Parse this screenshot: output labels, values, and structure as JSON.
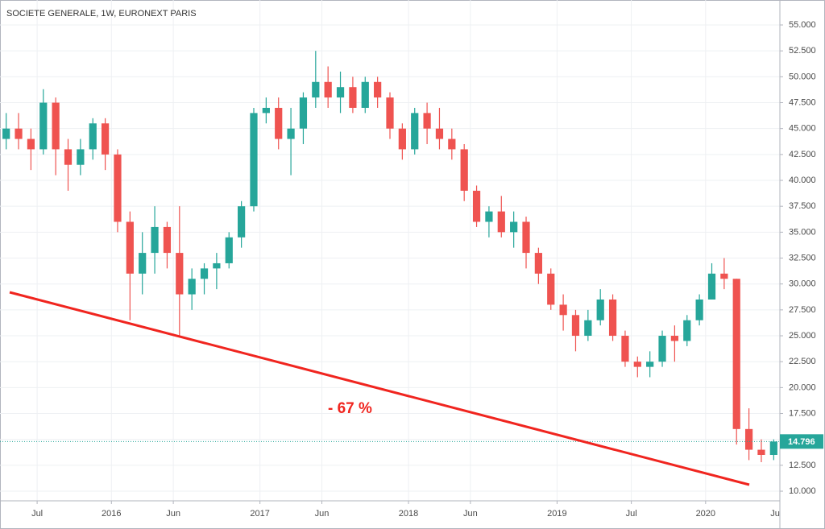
{
  "chart_data": {
    "type": "candlestick",
    "title": "SOCIETE GENERALE, 1W, EURONEXT PARIS",
    "annotation": "- 67 %",
    "up_color": "#26a69a",
    "down_color": "#ef5350",
    "x": [
      "2015-04",
      "2015-05",
      "2015-06",
      "2015-07",
      "2015-08",
      "2015-09",
      "2015-10",
      "2015-11",
      "2015-12",
      "2016-01",
      "2016-02",
      "2016-03",
      "2016-04",
      "2016-05",
      "2016-06",
      "2016-07",
      "2016-08",
      "2016-09",
      "2016-10",
      "2016-11",
      "2016-12",
      "2017-01",
      "2017-02",
      "2017-03",
      "2017-04",
      "2017-05",
      "2017-06",
      "2017-07",
      "2017-08",
      "2017-09",
      "2017-10",
      "2017-11",
      "2017-12",
      "2018-01",
      "2018-02",
      "2018-03",
      "2018-04",
      "2018-05",
      "2018-06",
      "2018-07",
      "2018-08",
      "2018-09",
      "2018-10",
      "2018-11",
      "2018-12",
      "2019-01",
      "2019-02",
      "2019-03",
      "2019-04",
      "2019-05",
      "2019-06",
      "2019-07",
      "2019-08",
      "2019-09",
      "2019-10",
      "2019-11",
      "2019-12",
      "2020-01",
      "2020-02",
      "2020-03",
      "2020-04",
      "2020-05",
      "2020-06"
    ],
    "open": [
      44,
      45,
      44,
      43,
      47.5,
      43,
      41.5,
      43,
      45.5,
      42.5,
      36,
      31,
      33,
      35.5,
      33,
      29,
      30.5,
      31.5,
      32,
      34.5,
      37.5,
      46.5,
      47,
      44,
      45,
      48,
      49.5,
      48,
      49,
      47,
      49.5,
      48,
      45,
      43,
      46.5,
      45,
      44,
      43,
      39,
      36,
      37,
      35,
      36,
      33,
      31,
      28,
      27,
      25,
      26.5,
      28.5,
      25,
      22.5,
      22,
      22.5,
      25,
      24.5,
      26.5,
      28.5,
      31,
      30.5,
      16,
      14,
      13.5
    ],
    "high": [
      46.5,
      46.5,
      45,
      48.8,
      48,
      44,
      44,
      46,
      46,
      43,
      37,
      35,
      37.5,
      36,
      37.5,
      31.5,
      32,
      33,
      35,
      38,
      47,
      48,
      48,
      47,
      48.5,
      52.5,
      51,
      50.5,
      50,
      50,
      50,
      48.5,
      45.5,
      47,
      47.5,
      47,
      45,
      43.5,
      39.5,
      37.5,
      38.5,
      37,
      36.5,
      33.5,
      31.5,
      29,
      27.5,
      27.5,
      29.5,
      29,
      25.5,
      23,
      23.5,
      25.5,
      26,
      27,
      29,
      32,
      32.5,
      30.5,
      18,
      15,
      15
    ],
    "low": [
      43,
      43,
      41,
      42.5,
      40.5,
      39,
      40.5,
      42,
      41,
      35,
      26.5,
      29,
      31,
      31.5,
      25,
      27.5,
      29,
      29.5,
      31.5,
      33.5,
      37,
      45.5,
      43,
      40.5,
      43.5,
      47,
      47,
      46.5,
      46.5,
      46.5,
      47,
      44,
      42,
      42.5,
      43.5,
      43,
      42,
      38,
      35.5,
      34.5,
      34.5,
      33.5,
      31.5,
      30,
      27.5,
      25.5,
      23.5,
      24.5,
      26,
      24.5,
      22,
      21,
      21,
      22,
      22.5,
      24,
      26,
      28.5,
      29.5,
      14.5,
      13,
      12.8,
      13
    ],
    "close": [
      45,
      44,
      43,
      47.5,
      43,
      41.5,
      43,
      45.5,
      42.5,
      36,
      31,
      33,
      35.5,
      33,
      29,
      30.5,
      31.5,
      32,
      34.5,
      37.5,
      46.5,
      47,
      44,
      45,
      48,
      49.5,
      48,
      49,
      47,
      49.5,
      48,
      45,
      43,
      46.5,
      45,
      44,
      43,
      39,
      36,
      37,
      35,
      36,
      33,
      31,
      28,
      27,
      25,
      26.5,
      28.5,
      25,
      22.5,
      22,
      22.5,
      25,
      24.5,
      26.5,
      28.5,
      31,
      30.5,
      16,
      14,
      13.5,
      14.796
    ],
    "xlim": [
      "2015-04",
      "2020-07"
    ],
    "xticks": [
      {
        "value": "2015-07",
        "label": "Jul"
      },
      {
        "value": "2016-01",
        "label": "2016"
      },
      {
        "value": "2016-06",
        "label": "Jun"
      },
      {
        "value": "2017-01",
        "label": "2017"
      },
      {
        "value": "2017-06",
        "label": "Jun"
      },
      {
        "value": "2018-01",
        "label": "2018"
      },
      {
        "value": "2018-06",
        "label": "Jun"
      },
      {
        "value": "2019-01",
        "label": "2019"
      },
      {
        "value": "2019-07",
        "label": "Jul"
      },
      {
        "value": "2020-01",
        "label": "2020"
      },
      {
        "value": "2020-07",
        "label": "Ju"
      }
    ],
    "ylim": [
      9.07,
      57.41
    ],
    "yticks": [
      {
        "value": 10,
        "label": "10.000"
      },
      {
        "value": 12.5,
        "label": "12.500"
      },
      {
        "value": 15,
        "label": "15.000"
      },
      {
        "value": 17.5,
        "label": "17.500"
      },
      {
        "value": 20,
        "label": "20.000"
      },
      {
        "value": 22.5,
        "label": "22.500"
      },
      {
        "value": 25,
        "label": "25.000"
      },
      {
        "value": 27.5,
        "label": "27.500"
      },
      {
        "value": 30,
        "label": "30.000"
      },
      {
        "value": 32.5,
        "label": "32.500"
      },
      {
        "value": 35,
        "label": "35.000"
      },
      {
        "value": 37.5,
        "label": "37.500"
      },
      {
        "value": 40,
        "label": "40.000"
      },
      {
        "value": 42.5,
        "label": "42.500"
      },
      {
        "value": 45,
        "label": "45.000"
      },
      {
        "value": 47.5,
        "label": "47.500"
      },
      {
        "value": 50,
        "label": "50.000"
      },
      {
        "value": 52.5,
        "label": "52.500"
      },
      {
        "value": 55,
        "label": "55.000"
      }
    ],
    "grid": true
  }
}
